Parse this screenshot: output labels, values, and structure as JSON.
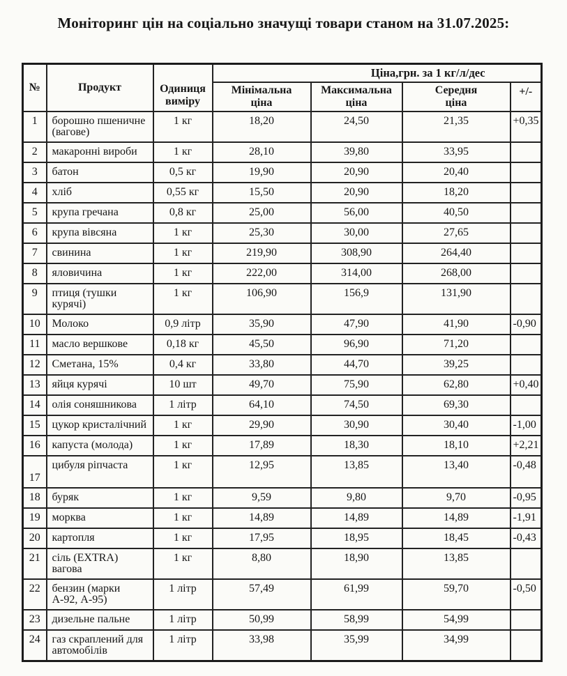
{
  "page": {
    "title": "Моніторинг цін на соціально значущі товари станом на 31.07.2025:"
  },
  "table": {
    "headers": {
      "num": "№",
      "product": "Продукт",
      "unit": "Одиниця\nвиміру",
      "price_group": "Ціна,грн. за 1 кг/л/дес",
      "min": "Мінімальна\nціна",
      "max": "Максимальна\nціна",
      "avg": "Середня\nціна",
      "delta": "+/-"
    },
    "rows": [
      {
        "num": "1",
        "product": "борошно пшеничне (вагове)",
        "unit": "1 кг",
        "min": "18,20",
        "max": "24,50",
        "avg": "21,35",
        "delta": "+0,35"
      },
      {
        "num": "2",
        "product": "макаронні вироби",
        "unit": "1 кг",
        "min": "28,10",
        "max": "39,80",
        "avg": "33,95",
        "delta": ""
      },
      {
        "num": "3",
        "product": "батон",
        "unit": "0,5 кг",
        "min": "19,90",
        "max": "20,90",
        "avg": "20,40",
        "delta": ""
      },
      {
        "num": "4",
        "product": "хліб",
        "unit": "0,55 кг",
        "min": "15,50",
        "max": "20,90",
        "avg": "18,20",
        "delta": ""
      },
      {
        "num": "5",
        "product": "крупа гречана",
        "unit": "0,8 кг",
        "min": "25,00",
        "max": "56,00",
        "avg": "40,50",
        "delta": ""
      },
      {
        "num": "6",
        "product": "крупа вівсяна",
        "unit": "1 кг",
        "min": "25,30",
        "max": "30,00",
        "avg": "27,65",
        "delta": ""
      },
      {
        "num": "7",
        "product": "свинина",
        "unit": "1 кг",
        "min": "219,90",
        "max": "308,90",
        "avg": "264,40",
        "delta": ""
      },
      {
        "num": "8",
        "product": "яловичина",
        "unit": "1 кг",
        "min": "222,00",
        "max": "314,00",
        "avg": "268,00",
        "delta": ""
      },
      {
        "num": "9",
        "product": "птиця (тушки курячі)",
        "unit": "1 кг",
        "min": "106,90",
        "max": "156,9",
        "avg": "131,90",
        "delta": ""
      },
      {
        "num": "10",
        "product": "Молоко",
        "unit": "0,9 літр",
        "min": "35,90",
        "max": "47,90",
        "avg": "41,90",
        "delta": "-0,90"
      },
      {
        "num": "11",
        "product": "масло вершкове",
        "unit": "0,18 кг",
        "min": "45,50",
        "max": "96,90",
        "avg": "71,20",
        "delta": ""
      },
      {
        "num": "12",
        "product": "Сметана, 15%",
        "unit": "0,4 кг",
        "min": "33,80",
        "max": "44,70",
        "avg": "39,25",
        "delta": ""
      },
      {
        "num": "13",
        "product": "яйця курячі",
        "unit": "10 шт",
        "min": "49,70",
        "max": "75,90",
        "avg": "62,80",
        "delta": "+0,40"
      },
      {
        "num": "14",
        "product": "олія соняшникова",
        "unit": "1 літр",
        "min": "64,10",
        "max": "74,50",
        "avg": "69,30",
        "delta": ""
      },
      {
        "num": "15",
        "product": "цукор кристалічний",
        "unit": "1 кг",
        "min": "29,90",
        "max": "30,90",
        "avg": "30,40",
        "delta": "-1,00"
      },
      {
        "num": "16",
        "product": "капуста (молода)",
        "unit": "1 кг",
        "min": "17,89",
        "max": "18,30",
        "avg": "18,10",
        "delta": "+2,21"
      },
      {
        "num": "17",
        "product": "цибуля ріпчаста",
        "unit": "1 кг",
        "min": "12,95",
        "max": "13,85",
        "avg": "13,40",
        "delta": "-0,48"
      },
      {
        "num": "18",
        "product": "буряк",
        "unit": "1 кг",
        "min": "9,59",
        "max": "9,80",
        "avg": "9,70",
        "delta": "-0,95"
      },
      {
        "num": "19",
        "product": "морква",
        "unit": "1 кг",
        "min": "14,89",
        "max": "14,89",
        "avg": "14,89",
        "delta": "-1,91"
      },
      {
        "num": "20",
        "product": "картопля",
        "unit": "1 кг",
        "min": "17,95",
        "max": "18,95",
        "avg": "18,45",
        "delta": "-0,43"
      },
      {
        "num": "21",
        "product": "сіль (EXTRA) вагова",
        "unit": "1 кг",
        "min": "8,80",
        "max": "18,90",
        "avg": "13,85",
        "delta": ""
      },
      {
        "num": "22",
        "product": "бензин (марки А-92, А-95)",
        "unit": "1 літр",
        "min": "57,49",
        "max": "61,99",
        "avg": "59,70",
        "delta": "-0,50"
      },
      {
        "num": "23",
        "product": "дизельне пальне",
        "unit": "1 літр",
        "min": "50,99",
        "max": "58,99",
        "avg": "54,99",
        "delta": ""
      },
      {
        "num": "24",
        "product": "газ скраплений для автомобілів",
        "unit": "1 літр",
        "min": "33,98",
        "max": "35,99",
        "avg": "34,99",
        "delta": ""
      }
    ]
  }
}
